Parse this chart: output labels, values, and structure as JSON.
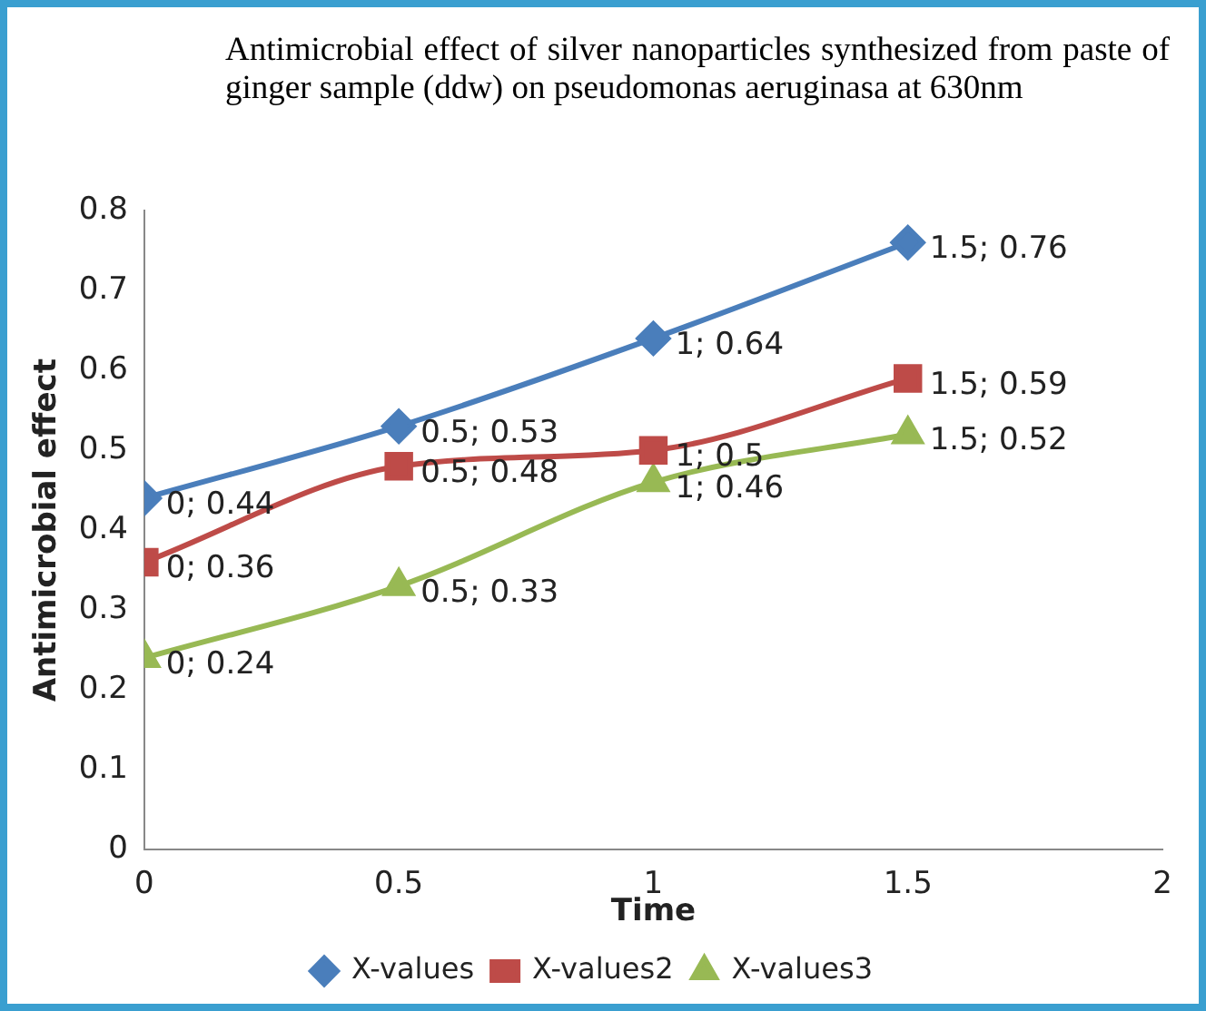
{
  "chart_data": {
    "type": "line",
    "title": "Antimicrobial effect of silver nanoparticles synthesized from paste of ginger sample (ddw) on pseudomonas aeruginasa at 630nm",
    "xlabel": "Time",
    "ylabel": "Antimicrobial effect",
    "x": [
      0,
      0.5,
      1,
      1.5
    ],
    "series": [
      {
        "name": "X-values",
        "color": "#4a7ebb",
        "marker": "diamond",
        "values": [
          0.44,
          0.53,
          0.64,
          0.76
        ],
        "value_labels": [
          "0; 0.44",
          "0.5; 0.53",
          "1; 0.64",
          "1.5; 0.76"
        ]
      },
      {
        "name": "X-values2",
        "color": "#be4b48",
        "marker": "square",
        "values": [
          0.36,
          0.48,
          0.5,
          0.59
        ],
        "value_labels": [
          "0; 0.36",
          "0.5; 0.48",
          "1; 0.5",
          "1.5; 0.59"
        ]
      },
      {
        "name": "X-values3",
        "color": "#98b954",
        "marker": "triangle",
        "values": [
          0.24,
          0.33,
          0.46,
          0.52
        ],
        "value_labels": [
          "0; 0.24",
          "0.5; 0.33",
          "1; 0.46",
          "1.5; 0.52"
        ]
      }
    ],
    "xlim": [
      0,
      2
    ],
    "xticks": [
      0,
      0.5,
      1,
      1.5,
      2
    ],
    "ylim": [
      0,
      0.8
    ],
    "yticks": [
      0,
      0.1,
      0.2,
      0.3,
      0.4,
      0.5,
      0.6,
      0.7,
      0.8
    ],
    "legend": "bottom",
    "grid": false
  }
}
